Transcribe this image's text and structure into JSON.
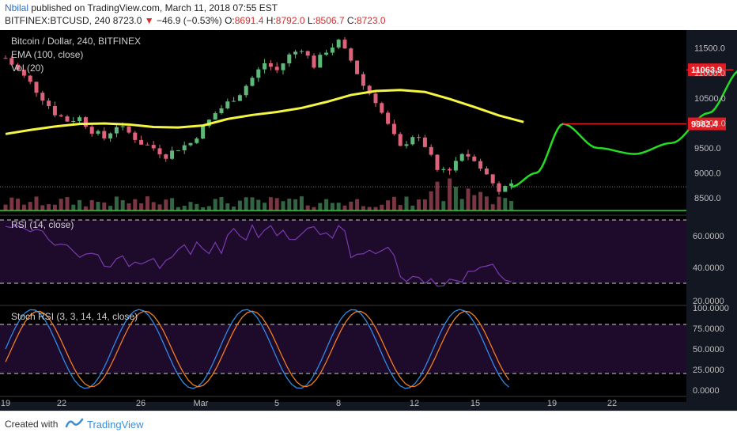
{
  "header": {
    "author": "Nbilal",
    "published_text": "published on TradingView.com, March 11, 2018 07:55 EST",
    "symbol": "BITFINEX:BTCUSD, 240",
    "last": "8723.0",
    "change_arrow": "▼",
    "change": "−46.9 (−0.53%)",
    "open_label": "O:",
    "open": "8691.4",
    "high_label": "H:",
    "high": "8792.0",
    "low_label": "L:",
    "low": "8506.7",
    "close_label": "C:",
    "close": "8723.0"
  },
  "price_pane": {
    "title": "Bitcoin / Dollar, 240, BITFINEX",
    "ema_label": "EMA (100, close)",
    "vol_label": "Vol (20)",
    "ticks": [
      "11500.0",
      "11000.0",
      "10500.0",
      "10000.0",
      "9500.0",
      "9000.0",
      "8500.0"
    ],
    "levels": [
      {
        "label": "11063.9",
        "value": 11063.9,
        "color": "#e31b23"
      },
      {
        "label": "9982.4",
        "value": 9982.4,
        "color": "#e31b23"
      }
    ],
    "last_price_line": 8723.0
  },
  "rsi_pane": {
    "label": "RSI (14, close)",
    "ticks": [
      "60.0000",
      "40.0000",
      "20.0000"
    ]
  },
  "stoch_pane": {
    "label": "Stoch RSI (3, 3, 14, 14, close)",
    "ticks": [
      "100.0000",
      "75.0000",
      "50.0000",
      "25.0000",
      "0.0000"
    ]
  },
  "time_axis": [
    "19",
    "22",
    "26",
    "Mar",
    "5",
    "8",
    "12",
    "15",
    "19",
    "22"
  ],
  "footer": {
    "created_with": "Created with",
    "brand": "TradingView"
  },
  "colors": {
    "background": "#000000",
    "up": "#5db87a",
    "down": "#e0627a",
    "ema": "#f5f542",
    "projection": "#22dd22",
    "level": "#e31b23",
    "rsi": "#7a3bb0",
    "rsi_band": "#1e0a2a",
    "stoch_k": "#2e8ae6",
    "stoch_d": "#f07e1f"
  },
  "chart_data": {
    "type": "candlestick",
    "title": "Bitcoin / Dollar, 240, BITFINEX",
    "price_range": [
      8250,
      11700
    ],
    "ema_period": 100,
    "ema_points": [
      [
        19,
        9780
      ],
      [
        20,
        9860
      ],
      [
        21,
        9930
      ],
      [
        22,
        9980
      ],
      [
        23,
        9990
      ],
      [
        24,
        9970
      ],
      [
        25,
        9920
      ],
      [
        26,
        9910
      ],
      [
        27,
        9950
      ],
      [
        28,
        10080
      ],
      [
        29,
        10160
      ],
      [
        30,
        10220
      ],
      [
        31,
        10300
      ],
      [
        32,
        10420
      ],
      [
        33,
        10560
      ],
      [
        34,
        10640
      ],
      [
        35,
        10660
      ],
      [
        36,
        10620
      ],
      [
        37,
        10480
      ],
      [
        38,
        10320
      ],
      [
        39,
        10150
      ],
      [
        40,
        10020
      ]
    ],
    "price_path": [
      [
        19,
        11300
      ],
      [
        19.5,
        11050
      ],
      [
        20,
        10800
      ],
      [
        20.5,
        10500
      ],
      [
        21,
        10200
      ],
      [
        21.5,
        10050
      ],
      [
        22,
        10100
      ],
      [
        22.5,
        9850
      ],
      [
        23,
        9700
      ],
      [
        23.5,
        9950
      ],
      [
        24,
        9800
      ],
      [
        24.5,
        9600
      ],
      [
        25,
        9500
      ],
      [
        25.5,
        9350
      ],
      [
        26,
        9500
      ],
      [
        26.5,
        9600
      ],
      [
        27,
        9900
      ],
      [
        27.5,
        10200
      ],
      [
        28,
        10400
      ],
      [
        28.5,
        10600
      ],
      [
        29,
        10900
      ],
      [
        29.5,
        11200
      ],
      [
        30,
        11050
      ],
      [
        30.5,
        11350
      ],
      [
        31,
        11500
      ],
      [
        31.5,
        11150
      ],
      [
        32,
        11450
      ],
      [
        32.5,
        11620
      ],
      [
        33,
        11250
      ],
      [
        33.5,
        10750
      ],
      [
        34,
        10450
      ],
      [
        34.5,
        9950
      ],
      [
        35,
        9500
      ],
      [
        35.5,
        9750
      ],
      [
        36,
        9550
      ],
      [
        36.5,
        9050
      ],
      [
        37,
        9100
      ],
      [
        37.5,
        9400
      ],
      [
        38,
        9300
      ],
      [
        38.5,
        8950
      ],
      [
        39,
        8650
      ],
      [
        39.5,
        8723
      ]
    ],
    "projection": [
      [
        39.5,
        8723
      ],
      [
        40.5,
        9000
      ],
      [
        41.6,
        9982.4
      ],
      [
        43,
        9500
      ],
      [
        44.5,
        9380
      ],
      [
        46,
        9600
      ],
      [
        47.5,
        10200
      ],
      [
        48.8,
        11063.9
      ]
    ],
    "levels": [
      11063.9,
      9982.4
    ],
    "x_ticks": [
      "19",
      "22",
      "26",
      "Mar",
      "5",
      "8",
      "12",
      "15",
      "19",
      "22"
    ]
  }
}
